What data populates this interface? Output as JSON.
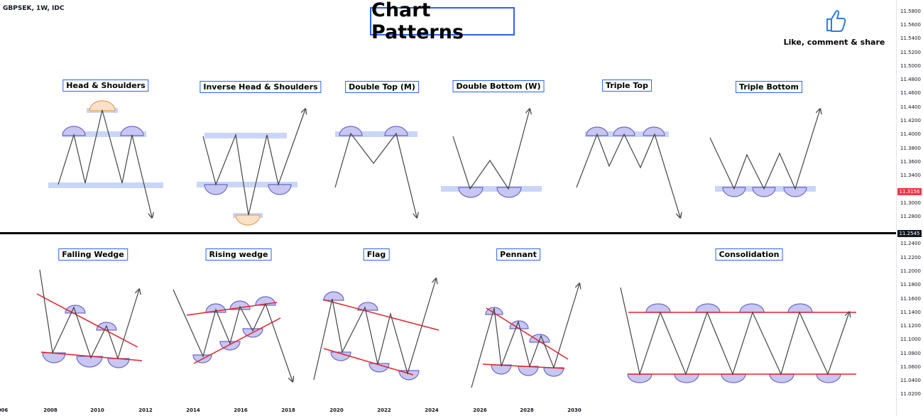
{
  "header": {
    "symbol": "GBPSEK, 1W, IDC",
    "title": "Chart Patterns",
    "like_text": "Like, comment & share",
    "like_icon": "thumbs-up-icon"
  },
  "patterns": {
    "head_shoulders": "Head & Shoulders",
    "inverse_head_shoulders": "Inverse Head & Shoulders",
    "double_top": "Double Top (M)",
    "double_bottom": "Double Bottom (W)",
    "triple_top": "Triple Top",
    "triple_bottom": "Triple Bottom",
    "falling_wedge": "Falling Wedge",
    "rising_wedge": "Rising wedge",
    "flag": "Flag",
    "pennant": "Pennant",
    "consolidation": "Consolidation"
  },
  "price_axis": {
    "ticks": [
      "11.5800",
      "11.5600",
      "11.5400",
      "11.5200",
      "11.5000",
      "11.4800",
      "11.4600",
      "11.4400",
      "11.4200",
      "11.4000",
      "11.3800",
      "11.3600",
      "11.3400",
      "11.3000",
      "11.2800",
      "11.2400",
      "11.2200",
      "11.2000",
      "11.1800",
      "11.1600",
      "11.1400",
      "11.1200",
      "11.1000",
      "11.0800",
      "11.0600",
      "11.0400",
      "11.0200"
    ],
    "current_price": "11.3156",
    "cursor_price": "11.2545",
    "current_price_color": "#f23645",
    "cursor_price_color": "#131722"
  },
  "time_axis": {
    "ticks": [
      "006",
      "2008",
      "2010",
      "2012",
      "2014",
      "2016",
      "2018",
      "2020",
      "2022",
      "2024",
      "2026",
      "2028",
      "2030"
    ]
  },
  "colors": {
    "accent_blue": "#2962ff",
    "zone_blue": "#c9d6f7",
    "hump_fill": "#c8c7f2",
    "hump_stroke": "#6b68c9",
    "head_fill": "#fbe1c6",
    "trend_red": "#e8202a",
    "path": "#444444"
  }
}
